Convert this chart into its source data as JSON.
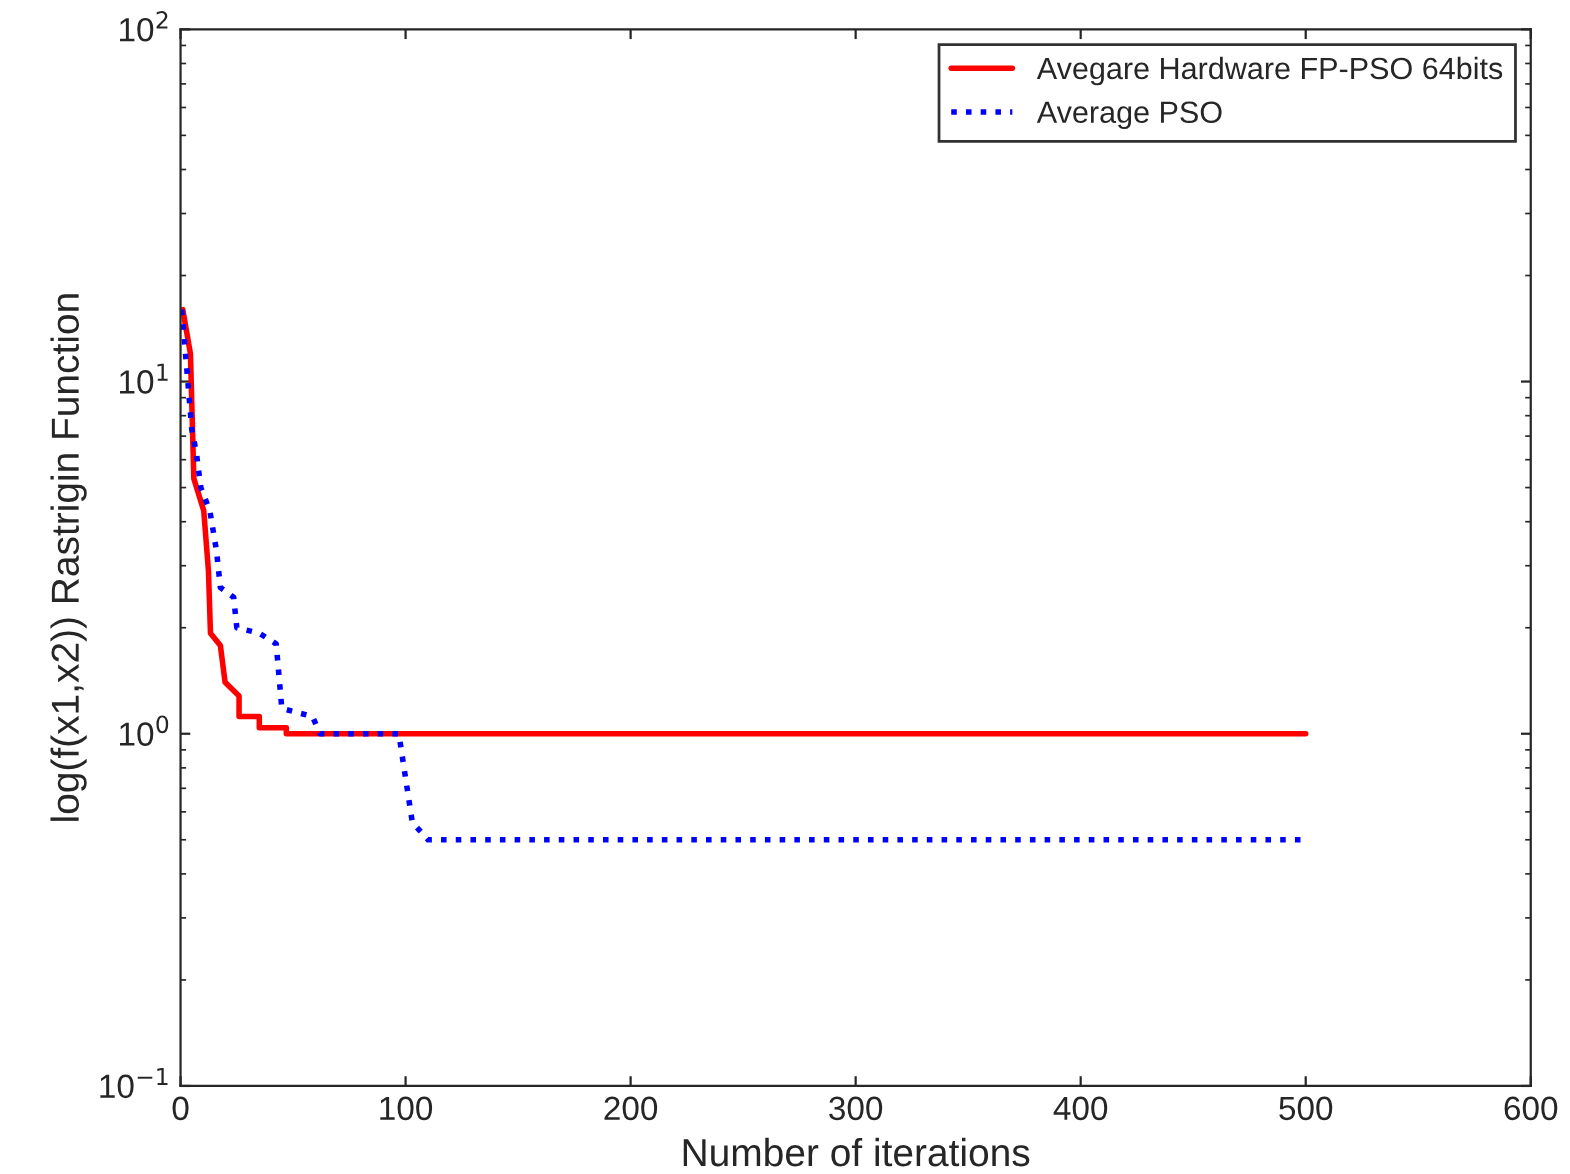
{
  "chart_data": {
    "type": "line",
    "xlabel": "Number of iterations",
    "ylabel": "log(f(x1,x2)) Rastrigin Function",
    "log": "y",
    "xlim": [
      0,
      600
    ],
    "xticks": [
      0,
      100,
      200,
      300,
      400,
      500,
      600
    ],
    "ylim": [
      0.1,
      100
    ],
    "yticks": [
      {
        "value": 0.1,
        "label": "10$^{−1}$"
      },
      {
        "value": 1,
        "label": "10$^{0}$"
      },
      {
        "value": 10,
        "label": "10$^{1}$"
      },
      {
        "value": 100,
        "label": "10$^{2}$"
      }
    ],
    "legend": "top right",
    "grid": false,
    "series": [
      {
        "name": "Avegare Hardware FP-PSO 64bits",
        "color": "#ff0000",
        "line_style": "solid",
        "x": [
          1,
          4.4,
          4.4,
          5.9,
          5.9,
          10.3,
          10.3,
          12.4,
          12.4,
          13.3,
          13.3,
          17.7,
          17.7,
          19.8,
          19.8,
          26,
          26,
          35,
          35,
          47,
          47,
          500
        ],
        "values": [
          16,
          12,
          12,
          5.3,
          5.3,
          4.3,
          4.3,
          2.9,
          2.9,
          1.93,
          1.93,
          1.78,
          1.78,
          1.4,
          1.4,
          1.28,
          1.12,
          1.12,
          1.04,
          1.04,
          1.0,
          1.0
        ]
      },
      {
        "name": "Average PSO",
        "color": "#0000ff",
        "line_style": "dotted",
        "x": [
          0.5,
          2.7,
          5,
          7,
          9,
          13,
          16,
          17.7,
          23.6,
          25,
          35,
          42.5,
          45,
          58.6,
          62,
          97,
          103,
          110,
          500
        ],
        "values": [
          16,
          11,
          7.3,
          6.3,
          5,
          4.3,
          3.3,
          2.6,
          2.44,
          2.0,
          1.93,
          1.8,
          1.18,
          1.12,
          1.0,
          1.0,
          0.56,
          0.5,
          0.5
        ]
      }
    ]
  }
}
